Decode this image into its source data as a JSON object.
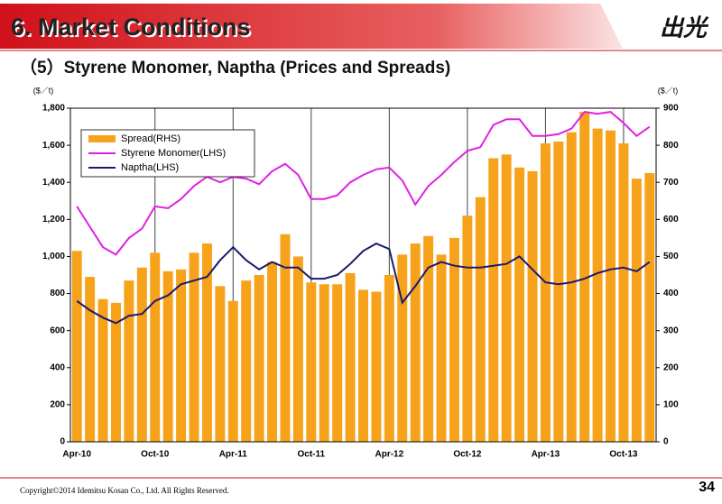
{
  "header": {
    "title": "6. Market Conditions",
    "logo": "出光"
  },
  "chart_data": {
    "type": "combo",
    "title": "（5）Styrene Monomer, Naptha (Prices and Spreads)",
    "y_label": "($／t)",
    "y2_label": "($／t)",
    "categories": [
      "Apr-10",
      null,
      null,
      null,
      null,
      null,
      "Oct-10",
      null,
      null,
      null,
      null,
      null,
      "Apr-11",
      null,
      null,
      null,
      null,
      null,
      "Oct-11",
      null,
      null,
      null,
      null,
      null,
      "Apr-12",
      null,
      null,
      null,
      null,
      null,
      "Oct-12",
      null,
      null,
      null,
      null,
      null,
      "Apr-13",
      null,
      null,
      null,
      null,
      null,
      "Oct-13",
      null,
      null
    ],
    "series": [
      {
        "name": "Spread(RHS)",
        "type": "bar",
        "axis": "y2",
        "color": "#f7a21b",
        "values": [
          515,
          445,
          385,
          375,
          435,
          470,
          510,
          460,
          465,
          510,
          535,
          420,
          380,
          435,
          450,
          485,
          560,
          500,
          430,
          425,
          425,
          455,
          410,
          405,
          450,
          505,
          535,
          555,
          505,
          550,
          610,
          660,
          765,
          775,
          740,
          730,
          805,
          810,
          835,
          890,
          845,
          840,
          805,
          710,
          725
        ]
      },
      {
        "name": "Styrene Monomer(LHS)",
        "type": "line",
        "color": "#e020e0",
        "values": [
          1270,
          1160,
          1050,
          1010,
          1100,
          1150,
          1270,
          1260,
          1310,
          1380,
          1430,
          1400,
          1430,
          1420,
          1390,
          1460,
          1500,
          1440,
          1310,
          1310,
          1330,
          1400,
          1440,
          1470,
          1480,
          1410,
          1280,
          1380,
          1440,
          1510,
          1570,
          1590,
          1710,
          1740,
          1740,
          1650,
          1650,
          1660,
          1690,
          1780,
          1770,
          1780,
          1720,
          1650,
          1700
        ]
      },
      {
        "name": "Naptha(LHS)",
        "type": "line",
        "color": "#1a1a6e",
        "values": [
          760,
          710,
          670,
          640,
          680,
          690,
          760,
          790,
          850,
          870,
          890,
          980,
          1050,
          980,
          930,
          970,
          940,
          940,
          880,
          880,
          900,
          960,
          1030,
          1070,
          1040,
          750,
          840,
          940,
          970,
          950,
          940,
          940,
          950,
          960,
          1000,
          930,
          860,
          850,
          860,
          880,
          910,
          930,
          940,
          920,
          970
        ]
      }
    ],
    "ylim": [
      0,
      1800
    ],
    "yticks": [
      0,
      200,
      400,
      600,
      800,
      {
        "value": 1000,
        "label": "1,000"
      },
      {
        "value": 1200,
        "label": "1,200"
      },
      {
        "value": 1400,
        "label": "1,400"
      },
      {
        "value": 1600,
        "label": "1,600"
      },
      {
        "value": 1800,
        "label": "1,800"
      }
    ],
    "y2lim": [
      0,
      900
    ],
    "y2ticks": [
      0,
      100,
      200,
      300,
      400,
      500,
      600,
      700,
      800,
      900
    ],
    "xgrid": true,
    "legend": "upper left"
  },
  "footer": {
    "copyright": "Copyright©2014 Idemitsu Kosan Co., Ltd. All Rights Reserved.",
    "page": "34"
  }
}
